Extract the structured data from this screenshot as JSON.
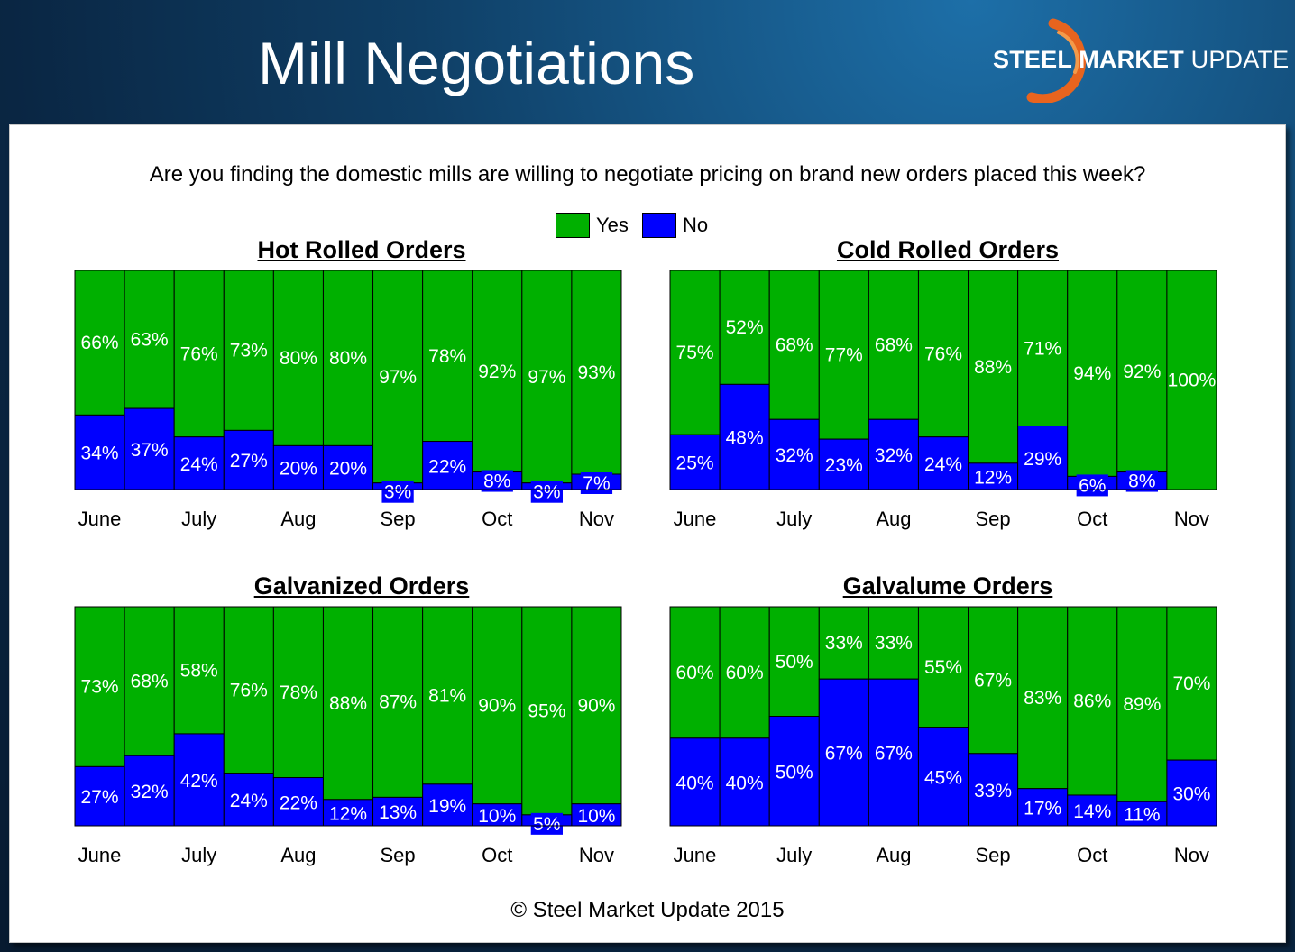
{
  "header": {
    "title": "Mill Negotiations",
    "brand_bold": "STEEL MARKET",
    "brand_thin": "UPDATE"
  },
  "question": "Are you finding the domestic mills are willing to negotiate pricing on brand new orders placed this week?",
  "legend": {
    "yes": "Yes",
    "no": "No"
  },
  "colors": {
    "yes": "#00b000",
    "no": "#0000ff",
    "brand_accent": "#e8641e"
  },
  "copyright": "© Steel Market Update 2015",
  "chart_data": [
    {
      "type": "bar",
      "stacked": true,
      "title": "Hot Rolled Orders",
      "tick_labels": [
        "June",
        "July",
        "Aug",
        "Sep",
        "Oct",
        "Nov"
      ],
      "series": [
        {
          "name": "Yes",
          "values": [
            66,
            63,
            76,
            73,
            80,
            80,
            97,
            78,
            92,
            97,
            93
          ]
        },
        {
          "name": "No",
          "values": [
            34,
            37,
            24,
            27,
            20,
            20,
            3,
            22,
            8,
            3,
            7
          ]
        }
      ],
      "ylim": [
        0,
        100
      ]
    },
    {
      "type": "bar",
      "stacked": true,
      "title": "Cold Rolled Orders",
      "tick_labels": [
        "June",
        "July",
        "Aug",
        "Sep",
        "Oct",
        "Nov"
      ],
      "series": [
        {
          "name": "Yes",
          "values": [
            75,
            52,
            68,
            77,
            68,
            76,
            88,
            71,
            94,
            92,
            100
          ]
        },
        {
          "name": "No",
          "values": [
            25,
            48,
            32,
            23,
            32,
            24,
            12,
            29,
            6,
            8,
            0
          ]
        }
      ],
      "ylim": [
        0,
        100
      ]
    },
    {
      "type": "bar",
      "stacked": true,
      "title": "Galvanized Orders",
      "tick_labels": [
        "June",
        "July",
        "Aug",
        "Sep",
        "Oct",
        "Nov"
      ],
      "series": [
        {
          "name": "Yes",
          "values": [
            73,
            68,
            58,
            76,
            78,
            88,
            87,
            81,
            90,
            95,
            90
          ]
        },
        {
          "name": "No",
          "values": [
            27,
            32,
            42,
            24,
            22,
            12,
            13,
            19,
            10,
            5,
            10
          ]
        }
      ],
      "ylim": [
        0,
        100
      ]
    },
    {
      "type": "bar",
      "stacked": true,
      "title": "Galvalume Orders",
      "tick_labels": [
        "June",
        "July",
        "Aug",
        "Sep",
        "Oct",
        "Nov"
      ],
      "series": [
        {
          "name": "Yes",
          "values": [
            60,
            60,
            50,
            33,
            33,
            55,
            67,
            83,
            86,
            89,
            70
          ]
        },
        {
          "name": "No",
          "values": [
            40,
            40,
            50,
            67,
            67,
            45,
            33,
            17,
            14,
            11,
            30
          ]
        }
      ],
      "ylim": [
        0,
        100
      ]
    }
  ]
}
